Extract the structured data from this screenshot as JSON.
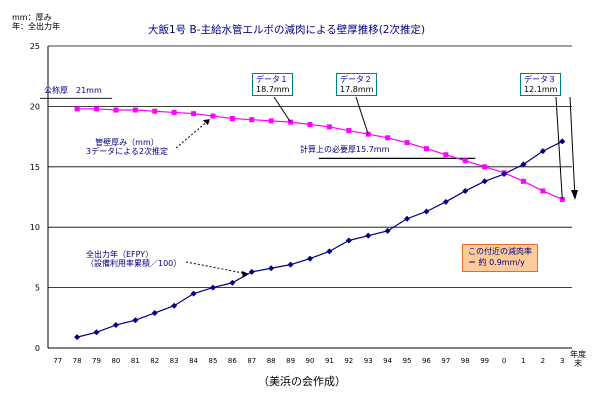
{
  "page": {
    "ylabel_line1": "mm：厚み",
    "ylabel_line2": "年：全出力年",
    "title": "大飯1号 B-主給水管エルボの減肉による壁厚推移(2次推定)",
    "footer": "（美浜の会作成）",
    "xunit_line1": "年度",
    "xunit_line2": "末"
  },
  "annotations": {
    "nominal": "公称厚　21mm",
    "wall_line1": "管壁厚み（mm）",
    "wall_line2": "3データによる2次推定",
    "required": "計算上の必要厚15.7mm",
    "power_line1": "全出力年（EFPY）",
    "power_line2": "（設備利用率累積／100）",
    "data1_title": "データ１",
    "data1_value": "18.7mm",
    "data2_title": "データ２",
    "data2_value": "17.8mm",
    "data3_title": "データ３",
    "data3_value": "12.1mm",
    "rate_line1": "この付近の減肉率",
    "rate_line2": "＝ 約 0.9mm/y"
  },
  "colors": {
    "wall": "#ff00ff",
    "power": "#000080",
    "callout_border": "#008080",
    "note_bg": "#ffcc99"
  },
  "chart_data": {
    "type": "line",
    "x": [
      "77",
      "78",
      "79",
      "80",
      "81",
      "82",
      "83",
      "84",
      "85",
      "86",
      "87",
      "88",
      "89",
      "90",
      "91",
      "92",
      "93",
      "94",
      "95",
      "96",
      "97",
      "98",
      "99",
      "0",
      "1",
      "2",
      "3"
    ],
    "ylim": [
      0,
      25
    ],
    "yticks": [
      0,
      5,
      10,
      15,
      20,
      25
    ],
    "grid": true,
    "series": [
      {
        "name": "管壁厚み（mm）",
        "color": "#ff00ff",
        "marker": "square",
        "x": [
          "78",
          "79",
          "80",
          "81",
          "82",
          "83",
          "84",
          "85",
          "86",
          "87",
          "88",
          "89",
          "90",
          "91",
          "92",
          "93",
          "94",
          "95",
          "96",
          "97",
          "98",
          "99",
          "0",
          "1",
          "2",
          "3"
        ],
        "values": [
          19.8,
          19.8,
          19.7,
          19.7,
          19.6,
          19.5,
          19.4,
          19.2,
          19.0,
          18.9,
          18.8,
          18.7,
          18.5,
          18.3,
          18.0,
          17.7,
          17.4,
          17.0,
          16.5,
          16.0,
          15.5,
          15.0,
          14.5,
          13.8,
          13.0,
          12.3
        ]
      },
      {
        "name": "全出力年（EFPY）",
        "color": "#000080",
        "marker": "diamond",
        "x": [
          "78",
          "79",
          "80",
          "81",
          "82",
          "83",
          "84",
          "85",
          "86",
          "87",
          "88",
          "89",
          "90",
          "91",
          "92",
          "93",
          "94",
          "95",
          "96",
          "97",
          "98",
          "99",
          "0",
          "1",
          "2",
          "3"
        ],
        "values": [
          0.9,
          1.3,
          1.9,
          2.3,
          2.9,
          3.5,
          4.5,
          5.0,
          5.4,
          6.3,
          6.6,
          6.9,
          7.4,
          8.0,
          8.9,
          9.3,
          9.7,
          10.7,
          11.3,
          12.1,
          13.0,
          13.8,
          14.4,
          15.2,
          16.3,
          17.1
        ]
      }
    ],
    "reference_lines": [
      {
        "label": "公称厚　21mm",
        "value": 21
      },
      {
        "label": "計算上の必要厚15.7mm",
        "value": 15.7
      }
    ]
  }
}
